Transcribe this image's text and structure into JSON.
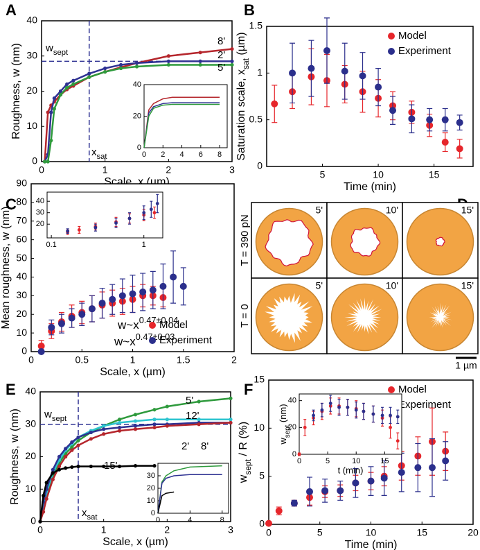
{
  "chart_data": [
    {
      "panel": "A",
      "type": "line",
      "markers": true,
      "labels": "inline",
      "xlabel": "Scale, x (µm)",
      "ylabel": "Roughness, w (nm)",
      "xlim": [
        0,
        3
      ],
      "xticks": [
        0,
        1,
        2,
        3
      ],
      "ylim": [
        0,
        40
      ],
      "yticks": [
        0,
        10,
        20,
        30,
        40
      ],
      "x": [
        0.05,
        0.1,
        0.15,
        0.2,
        0.3,
        0.4,
        0.5,
        0.75,
        1,
        1.25,
        1.5,
        2,
        2.5,
        3
      ],
      "series": [
        {
          "name": "8'",
          "color": "#b5262c",
          "values": [
            0,
            14,
            16,
            17,
            19,
            20.5,
            21.5,
            24,
            25.5,
            26.8,
            28,
            30,
            31,
            32
          ]
        },
        {
          "name": "2'",
          "color": "#2e3192",
          "values": [
            0,
            2,
            14,
            18,
            20,
            22,
            23,
            25,
            26.5,
            27.5,
            28,
            28.5,
            28.5,
            28.5
          ]
        },
        {
          "name": "5'",
          "color": "#2e9a3c",
          "values": [
            0,
            0,
            6,
            15,
            19,
            21,
            22,
            24,
            25.5,
            26.5,
            27,
            27.5,
            27.5,
            27.5
          ]
        }
      ],
      "hline": 28.5,
      "hline_label": {
        "text": "w",
        "sub": "sept"
      },
      "vline": 0.75,
      "vline_label": {
        "text": "x",
        "sub": "sat"
      }
    },
    {
      "type": "line",
      "xlim": [
        0,
        8.8
      ],
      "xticks": [
        0,
        2,
        4,
        6,
        8
      ],
      "ylim": [
        0,
        40
      ],
      "yticks": [
        0,
        20,
        40
      ],
      "x": [
        0,
        0.5,
        1,
        2,
        3,
        4,
        6,
        8
      ],
      "series": [
        {
          "color": "#b5262c",
          "values": [
            0,
            24,
            28,
            31,
            32,
            32,
            32,
            32
          ]
        },
        {
          "color": "#2e3192",
          "values": [
            0,
            22,
            26,
            28,
            28.5,
            28.5,
            28.5,
            28.5
          ]
        },
        {
          "color": "#2e9a3c",
          "values": [
            0,
            20,
            25,
            27,
            27.5,
            27.5,
            27.5,
            27.5
          ]
        }
      ]
    },
    {
      "panel": "B",
      "type": "scatter",
      "legend": "upper right",
      "xlabel": "Time (min)",
      "ylabel": {
        "text": "Saturation scale, x",
        "sub": "sat",
        "tail": " (µm)"
      },
      "xlim": [
        0,
        18.5
      ],
      "xticks": [
        5,
        10,
        15
      ],
      "ylim": [
        0,
        1.5
      ],
      "yticks": [
        0,
        0.5,
        1,
        1.5
      ],
      "series": [
        {
          "name": "Model",
          "color": "#e6262b",
          "x": [
            0.7,
            2.3,
            4,
            5.4,
            7,
            8.6,
            10,
            11.3,
            13,
            14.6,
            16,
            17.3
          ],
          "values": [
            0.67,
            0.8,
            0.96,
            0.92,
            0.88,
            0.8,
            0.73,
            0.65,
            0.58,
            0.44,
            0.26,
            0.19
          ],
          "err": [
            0.2,
            0.18,
            0.3,
            0.28,
            0.2,
            0.22,
            0.2,
            0.15,
            0.12,
            0.12,
            0.1,
            0.1
          ]
        },
        {
          "name": "Experiment",
          "color": "#2b2f8c",
          "x": [
            2.3,
            4,
            5.4,
            7,
            8.6,
            10,
            11.3,
            13,
            14.6,
            16,
            17.3
          ],
          "values": [
            1.0,
            1.05,
            1.24,
            1.02,
            0.97,
            0.85,
            0.6,
            0.51,
            0.5,
            0.5,
            0.47
          ],
          "err": [
            0.32,
            0.3,
            0.35,
            0.3,
            0.25,
            0.2,
            0.15,
            0.15,
            0.12,
            0.12,
            0.08
          ]
        }
      ]
    },
    {
      "panel": "C",
      "type": "scatter",
      "legend": "lower right",
      "xlabel": "Scale, x (µm)",
      "ylabel": "Mean roughness, w (nm)",
      "xlim": [
        0,
        2
      ],
      "xticks": [
        0,
        0.5,
        1,
        1.5,
        2
      ],
      "ylim": [
        0,
        90
      ],
      "yticks": [
        0,
        10,
        20,
        30,
        40,
        50,
        60,
        70,
        80,
        90
      ],
      "series": [
        {
          "name": "Model",
          "color": "#e6262b",
          "fit": {
            "text": "w~x",
            "sup": "0.47±0.04"
          },
          "x": [
            0.1,
            0.2,
            0.3,
            0.4,
            0.5,
            0.6,
            0.7,
            0.8,
            0.9,
            1.0,
            1.1,
            1.2,
            1.3
          ],
          "values": [
            3,
            11,
            16,
            19,
            21,
            23,
            25,
            26,
            27,
            28,
            30,
            30,
            29
          ],
          "err": [
            3,
            4,
            5,
            6,
            6,
            7,
            7,
            7,
            7,
            7,
            6,
            5,
            5
          ]
        },
        {
          "name": "Experiment",
          "color": "#2b2f8c",
          "fit": {
            "text": "w~x",
            "sup": "0.47±0.03"
          },
          "x": [
            0.1,
            0.2,
            0.3,
            0.4,
            0.5,
            0.6,
            0.7,
            0.8,
            0.9,
            1.0,
            1.1,
            1.2,
            1.3,
            1.4,
            1.5
          ],
          "values": [
            0,
            13,
            15,
            18,
            20,
            23,
            26,
            28,
            30,
            31,
            32,
            33,
            35,
            40,
            35
          ],
          "err": [
            1,
            4,
            5,
            5,
            6,
            7,
            8,
            8,
            9,
            10,
            10,
            10,
            12,
            14,
            10
          ]
        }
      ]
    },
    {
      "type": "scatter",
      "xscale": "log",
      "xlim": [
        0.09,
        1.6
      ],
      "xticks": [
        0.1,
        1
      ],
      "ylim": [
        8,
        48
      ],
      "yticks": [
        20,
        30,
        40
      ],
      "series": [
        {
          "color": "#e6262b",
          "x": [
            0.15,
            0.2,
            0.3,
            0.5,
            0.7,
            1.0,
            1.3
          ],
          "values": [
            13,
            15,
            18,
            22,
            25,
            28,
            30
          ],
          "err": [
            2,
            3,
            3,
            4,
            4,
            5,
            5
          ]
        },
        {
          "color": "#2b2f8c",
          "x": [
            0.15,
            0.3,
            0.5,
            0.7,
            1.0,
            1.2,
            1.4
          ],
          "values": [
            14,
            17,
            21,
            25,
            30,
            33,
            38
          ],
          "err": [
            2,
            3,
            4,
            5,
            6,
            7,
            8
          ]
        }
      ]
    },
    {
      "panel": "E",
      "type": "line",
      "markers": true,
      "labels": "inline",
      "xlabel": "Scale, x (µm)",
      "ylabel": "Roughness, w (nm)",
      "xlim": [
        0,
        3
      ],
      "xticks": [
        0,
        1,
        2,
        3
      ],
      "ylim": [
        0,
        40
      ],
      "yticks": [
        0,
        10,
        20,
        30,
        40
      ],
      "x": [
        0,
        0.05,
        0.1,
        0.2,
        0.3,
        0.4,
        0.5,
        0.6,
        0.8,
        1,
        1.25,
        1.5,
        1.8,
        2,
        2.5,
        3
      ],
      "series": [
        {
          "name": "5'",
          "color": "#2e9a3c",
          "values": [
            0,
            4,
            8,
            14,
            18,
            21,
            23,
            25,
            27.5,
            29.5,
            31.5,
            33,
            34.5,
            35.5,
            37,
            38
          ]
        },
        {
          "name": "12'",
          "color": "#2ec4d0",
          "values": [
            0,
            5,
            9,
            15,
            19,
            22,
            24,
            26,
            28,
            29.5,
            30.5,
            31,
            31.5,
            31.5,
            31.5,
            31.5
          ]
        },
        {
          "name": "2'",
          "color": "#2e3192",
          "values": [
            0,
            6,
            10,
            16,
            20,
            22.5,
            24.5,
            26,
            27.5,
            28.5,
            29,
            29.5,
            30,
            30,
            30.5,
            30.5
          ]
        },
        {
          "name": "8'",
          "color": "#b5262c",
          "values": [
            0,
            3,
            7,
            13,
            17,
            20,
            22,
            23.5,
            25.5,
            27,
            28,
            28.5,
            29,
            29.5,
            30,
            30.5
          ]
        },
        {
          "name": "15'",
          "color": "#000000",
          "values": [
            0,
            8,
            12,
            15,
            16,
            16.5,
            16.8,
            17,
            17,
            17,
            17,
            17.2,
            17.2,
            null,
            null,
            null
          ]
        }
      ],
      "hline": 30,
      "hline_label": {
        "text": "w",
        "sub": "sept"
      },
      "vline": 0.6,
      "vline_label": {
        "text": "x",
        "sub": "sat"
      }
    },
    {
      "type": "line",
      "xlim": [
        0,
        8.8
      ],
      "xticks": [
        0,
        4,
        8
      ],
      "ylim": [
        0,
        40
      ],
      "yticks": [
        0,
        10,
        20,
        30
      ],
      "x": [
        0,
        0.5,
        1,
        2,
        4,
        6,
        8
      ],
      "series": [
        {
          "color": "#2e9a3c",
          "values": [
            0,
            25,
            30,
            34,
            37,
            37.5,
            38
          ]
        },
        {
          "color": "#2e3192",
          "values": [
            0,
            24,
            28,
            30,
            31,
            31,
            31
          ]
        },
        {
          "color": "#000000",
          "values": [
            0,
            14,
            16,
            17,
            null,
            null,
            null
          ]
        }
      ]
    },
    {
      "panel": "F",
      "type": "scatter",
      "legend": "upper right",
      "xlabel": "Time (min)",
      "ylabel": {
        "text": "w",
        "sub": "sept",
        "tail": " / R (%)"
      },
      "xlim": [
        0,
        20
      ],
      "xticks": [
        0,
        5,
        10,
        15,
        20
      ],
      "ylim": [
        0,
        15
      ],
      "yticks": [
        0,
        5,
        10,
        15
      ],
      "series": [
        {
          "name": "Model",
          "color": "#e6262b",
          "x": [
            0,
            1,
            2.5,
            4,
            5.5,
            7,
            8.5,
            10,
            11.3,
            13,
            14.6,
            16,
            17.3
          ],
          "values": [
            0.1,
            1.4,
            2.2,
            2.8,
            3.4,
            3.5,
            4.3,
            4.5,
            5.0,
            6.1,
            7.1,
            8.6,
            7.6
          ],
          "err": [
            0.1,
            0.4,
            0.3,
            0.8,
            0.6,
            0.6,
            0.8,
            0.9,
            1,
            1.5,
            2,
            3.5,
            2
          ]
        },
        {
          "name": "Experiment",
          "color": "#2b2f8c",
          "x": [
            2.5,
            4,
            5.5,
            7,
            8.5,
            10,
            11.3,
            13,
            14.6,
            16,
            17.3
          ],
          "values": [
            2.2,
            3.4,
            3.5,
            3.5,
            4.3,
            4.5,
            4.8,
            5.4,
            5.9,
            5.9,
            6.6
          ],
          "err": [
            0.3,
            1.5,
            1.2,
            1,
            1.5,
            1.5,
            1.8,
            2,
            2.5,
            3,
            2
          ]
        }
      ]
    },
    {
      "type": "scatter",
      "xlabel": "t (min)",
      "ylabel": {
        "text": "w",
        "sub": "sept",
        "tail": " (nm)"
      },
      "xlim": [
        0,
        18
      ],
      "xticks": [
        0,
        5,
        10,
        15
      ],
      "ylim": [
        0,
        45
      ],
      "yticks": [
        0,
        20,
        40
      ],
      "series": [
        {
          "color": "#e6262b",
          "x": [
            0,
            1,
            2.5,
            4,
            5.5,
            7,
            8.5,
            10,
            11.3,
            13,
            14.6,
            16,
            17.3
          ],
          "values": [
            0,
            20,
            27,
            32,
            36,
            36,
            35,
            34,
            32,
            30,
            27,
            20,
            10
          ],
          "err": [
            1,
            6,
            5,
            6,
            6,
            6,
            6,
            6,
            6,
            6,
            6,
            8,
            6
          ]
        },
        {
          "color": "#2b2f8c",
          "x": [
            2.5,
            4,
            5.5,
            7,
            8.5,
            10,
            11.3,
            13,
            14.6,
            16,
            17.3
          ],
          "values": [
            29,
            33,
            38,
            35,
            35,
            33,
            32,
            30,
            29,
            29,
            28
          ],
          "err": [
            4,
            5,
            6,
            6,
            6,
            6,
            6,
            6,
            6,
            6,
            5
          ]
        }
      ]
    }
  ],
  "panel_d": {
    "panel": "D",
    "rows": [
      {
        "label": "T = 390 pN"
      },
      {
        "label": "T = 0"
      }
    ],
    "times": [
      "5'",
      "10'",
      "15'"
    ],
    "scale_bar": "1 µm"
  }
}
